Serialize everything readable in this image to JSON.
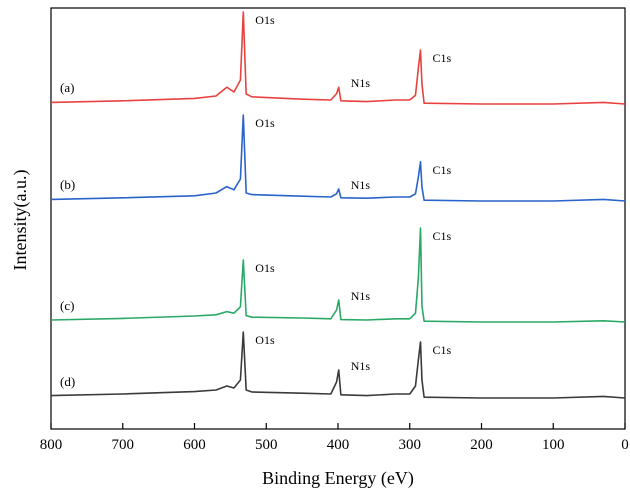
{
  "chart_data": {
    "type": "line",
    "title": "",
    "xlabel": "Binding Energy (eV)",
    "ylabel": "Intensity(a.u.)",
    "xlim": [
      800,
      0
    ],
    "x_reversed": true,
    "xticks": [
      "800",
      "700",
      "600",
      "500",
      "400",
      "300",
      "200",
      "100",
      "0"
    ],
    "yticks_shown": false,
    "grid": false,
    "series": [
      {
        "name": "(a)",
        "color": "#e8423f",
        "points": [
          [
            800,
            0.04
          ],
          [
            700,
            0.08
          ],
          [
            600,
            0.14
          ],
          [
            570,
            0.2
          ],
          [
            555,
            0.42
          ],
          [
            545,
            0.3
          ],
          [
            536,
            0.6
          ],
          [
            532,
            2.3
          ],
          [
            528,
            0.25
          ],
          [
            520,
            0.18
          ],
          [
            450,
            0.12
          ],
          [
            410,
            0.1
          ],
          [
            402,
            0.26
          ],
          [
            399,
            0.42
          ],
          [
            396,
            0.08
          ],
          [
            360,
            0.06
          ],
          [
            320,
            0.1
          ],
          [
            300,
            0.1
          ],
          [
            292,
            0.22
          ],
          [
            288,
            0.9
          ],
          [
            285,
            1.35
          ],
          [
            283,
            0.5
          ],
          [
            280,
            0.02
          ],
          [
            200,
            0.0
          ],
          [
            100,
            0.0
          ],
          [
            30,
            0.04
          ],
          [
            0,
            0.0
          ]
        ],
        "peaks": [
          {
            "label": "O1s",
            "x": 532
          },
          {
            "label": "N1s",
            "x": 399
          },
          {
            "label": "C1s",
            "x": 285
          }
        ]
      },
      {
        "name": "(b)",
        "color": "#2a63c9",
        "points": [
          [
            800,
            0.04
          ],
          [
            700,
            0.08
          ],
          [
            600,
            0.13
          ],
          [
            570,
            0.2
          ],
          [
            555,
            0.36
          ],
          [
            545,
            0.28
          ],
          [
            536,
            0.55
          ],
          [
            532,
            2.15
          ],
          [
            528,
            0.2
          ],
          [
            520,
            0.16
          ],
          [
            450,
            0.12
          ],
          [
            410,
            0.1
          ],
          [
            402,
            0.18
          ],
          [
            399,
            0.3
          ],
          [
            396,
            0.08
          ],
          [
            360,
            0.07
          ],
          [
            320,
            0.1
          ],
          [
            300,
            0.1
          ],
          [
            292,
            0.18
          ],
          [
            288,
            0.6
          ],
          [
            285,
            0.98
          ],
          [
            283,
            0.35
          ],
          [
            280,
            0.02
          ],
          [
            200,
            0.0
          ],
          [
            100,
            0.0
          ],
          [
            30,
            0.04
          ],
          [
            0,
            0.0
          ]
        ],
        "peaks": [
          {
            "label": "O1s",
            "x": 532
          },
          {
            "label": "N1s",
            "x": 399
          },
          {
            "label": "C1s",
            "x": 285
          }
        ]
      },
      {
        "name": "(c)",
        "color": "#2aa866",
        "points": [
          [
            800,
            0.05
          ],
          [
            700,
            0.09
          ],
          [
            600,
            0.15
          ],
          [
            570,
            0.18
          ],
          [
            555,
            0.26
          ],
          [
            545,
            0.22
          ],
          [
            536,
            0.38
          ],
          [
            532,
            1.55
          ],
          [
            528,
            0.16
          ],
          [
            520,
            0.12
          ],
          [
            450,
            0.1
          ],
          [
            410,
            0.08
          ],
          [
            402,
            0.3
          ],
          [
            399,
            0.55
          ],
          [
            396,
            0.06
          ],
          [
            360,
            0.05
          ],
          [
            320,
            0.08
          ],
          [
            300,
            0.08
          ],
          [
            292,
            0.22
          ],
          [
            288,
            1.1
          ],
          [
            285,
            2.35
          ],
          [
            283,
            0.4
          ],
          [
            280,
            0.02
          ],
          [
            200,
            0.0
          ],
          [
            100,
            0.0
          ],
          [
            30,
            0.03
          ],
          [
            0,
            0.0
          ]
        ],
        "peaks": [
          {
            "label": "O1s",
            "x": 532
          },
          {
            "label": "N1s",
            "x": 399
          },
          {
            "label": "C1s",
            "x": 285
          }
        ]
      },
      {
        "name": "(d)",
        "color": "#3a3a3a",
        "points": [
          [
            800,
            0.06
          ],
          [
            700,
            0.1
          ],
          [
            600,
            0.16
          ],
          [
            570,
            0.2
          ],
          [
            555,
            0.3
          ],
          [
            545,
            0.25
          ],
          [
            536,
            0.45
          ],
          [
            532,
            1.65
          ],
          [
            528,
            0.2
          ],
          [
            520,
            0.15
          ],
          [
            450,
            0.12
          ],
          [
            410,
            0.1
          ],
          [
            402,
            0.4
          ],
          [
            399,
            0.7
          ],
          [
            396,
            0.08
          ],
          [
            360,
            0.06
          ],
          [
            320,
            0.1
          ],
          [
            300,
            0.1
          ],
          [
            292,
            0.3
          ],
          [
            288,
            0.95
          ],
          [
            285,
            1.4
          ],
          [
            283,
            0.45
          ],
          [
            280,
            0.02
          ],
          [
            200,
            0.0
          ],
          [
            100,
            0.0
          ],
          [
            30,
            0.04
          ],
          [
            0,
            0.0
          ]
        ],
        "peaks": [
          {
            "label": "O1s",
            "x": 532
          },
          {
            "label": "N1s",
            "x": 399
          },
          {
            "label": "C1s",
            "x": 285
          }
        ]
      }
    ]
  }
}
